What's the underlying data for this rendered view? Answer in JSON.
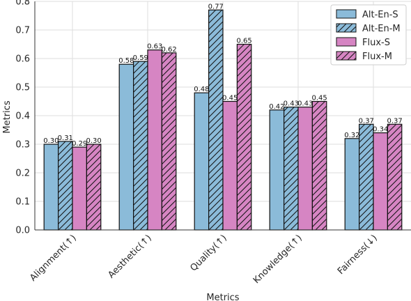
{
  "chart_data": {
    "type": "bar",
    "title": "",
    "xlabel": "Metrics",
    "ylabel": "Metrics",
    "ylim": [
      0,
      0.8
    ],
    "yticks": [
      "0.0",
      "0.1",
      "0.2",
      "0.3",
      "0.4",
      "0.5",
      "0.6",
      "0.7",
      "0.8"
    ],
    "grid": true,
    "legend_position": "top-right",
    "categories": [
      "Alignment(↑)",
      "Aesthetic(↑)",
      "Quality(↑)",
      "Knowledge(↑)",
      "Fairness(↓)"
    ],
    "series": [
      {
        "name": "Alt-En-S",
        "color": "#8bbbd9",
        "hatch": false,
        "values": [
          0.3,
          0.58,
          0.48,
          0.42,
          0.32
        ],
        "labels": [
          "0.30",
          "0.58",
          "0.48",
          "0.42",
          "0.32"
        ]
      },
      {
        "name": "Alt-En-M",
        "color": "#8bbbd9",
        "hatch": true,
        "values": [
          0.31,
          0.59,
          0.77,
          0.43,
          0.37
        ],
        "labels": [
          "0.31",
          "0.59",
          "0.77",
          "0.43",
          "0.37"
        ]
      },
      {
        "name": "Flux-S",
        "color": "#d685c3",
        "hatch": false,
        "values": [
          0.29,
          0.63,
          0.45,
          0.43,
          0.34
        ],
        "labels": [
          "0.29",
          "0.63",
          "0.45",
          "0.43",
          "0.34"
        ]
      },
      {
        "name": "Flux-M",
        "color": "#d685c3",
        "hatch": true,
        "values": [
          0.3,
          0.62,
          0.65,
          0.45,
          0.37
        ],
        "labels": [
          "0.30",
          "0.62",
          "0.65",
          "0.45",
          "0.37"
        ]
      }
    ]
  }
}
